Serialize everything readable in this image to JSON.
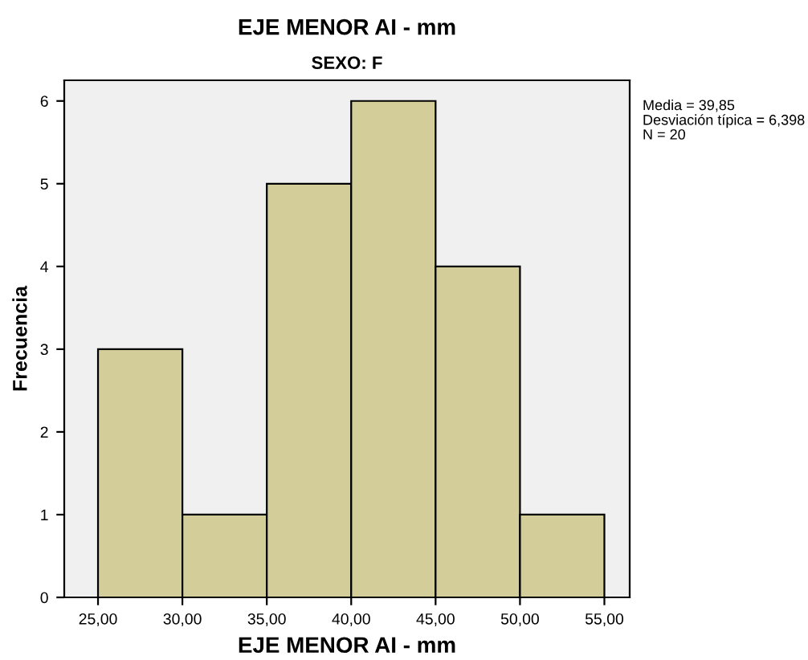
{
  "chart_data": {
    "type": "histogram",
    "title": "EJE MENOR AI - mm",
    "subtitle": "SEXO: F",
    "xlabel": "EJE MENOR AI - mm",
    "ylabel": "Frecuencia",
    "bins": [
      25,
      30,
      35,
      40,
      45,
      50,
      55
    ],
    "values": [
      3,
      1,
      5,
      6,
      4,
      1
    ],
    "color": "#d3ce99",
    "xlim": [
      23,
      56.5
    ],
    "xticks": [
      {
        "value": 25,
        "label": "25,00"
      },
      {
        "value": 30,
        "label": "30,00"
      },
      {
        "value": 35,
        "label": "35,00"
      },
      {
        "value": 40,
        "label": "40,00"
      },
      {
        "value": 45,
        "label": "45,00"
      },
      {
        "value": 50,
        "label": "50,00"
      },
      {
        "value": 55,
        "label": "55,00"
      }
    ],
    "ylim": [
      0,
      6.25
    ],
    "yticks": [
      0,
      1,
      2,
      3,
      4,
      5,
      6
    ],
    "grid": false,
    "annotations": [
      "Media = 39,85\nDesviación típica = 6,398\nN = 20"
    ]
  }
}
